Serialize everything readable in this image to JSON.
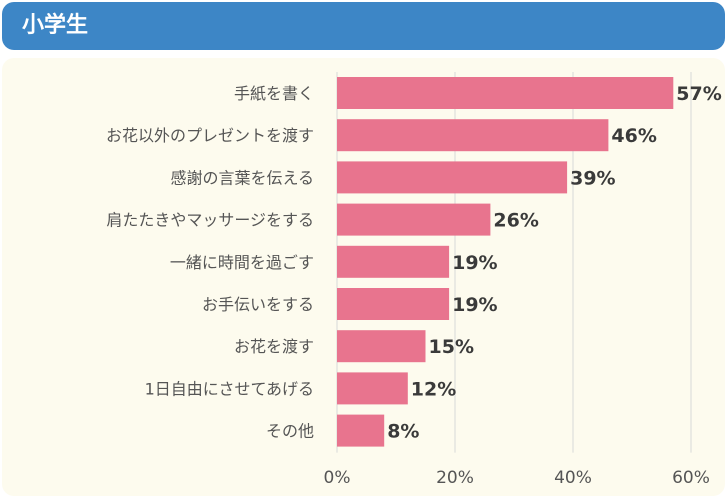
{
  "header": {
    "title": "小学生"
  },
  "colors": {
    "bar": "#e8748e",
    "header": "#3d86c6",
    "panel": "#fdfbee",
    "grid": "#d8d8d8",
    "label": "#555555",
    "value": "#3a3a3a"
  },
  "chart_data": {
    "type": "bar",
    "orientation": "horizontal",
    "title": "小学生",
    "categories": [
      "手紙を書く",
      "お花以外のプレゼントを渡す",
      "感謝の言葉を伝える",
      "肩たたきやマッサージをする",
      "一緒に時間を過ごす",
      "お手伝いをする",
      "お花を渡す",
      "1日自由にさせてあげる",
      "その他"
    ],
    "values": [
      57,
      46,
      39,
      26,
      19,
      19,
      15,
      12,
      8
    ],
    "value_labels": [
      "57%",
      "46%",
      "39%",
      "26%",
      "19%",
      "19%",
      "15%",
      "12%",
      "8%"
    ],
    "xlim": [
      0,
      60
    ],
    "xticks": [
      0,
      20,
      40,
      60
    ],
    "xtick_labels": [
      "0%",
      "20%",
      "40%",
      "60%"
    ],
    "grid": true
  }
}
